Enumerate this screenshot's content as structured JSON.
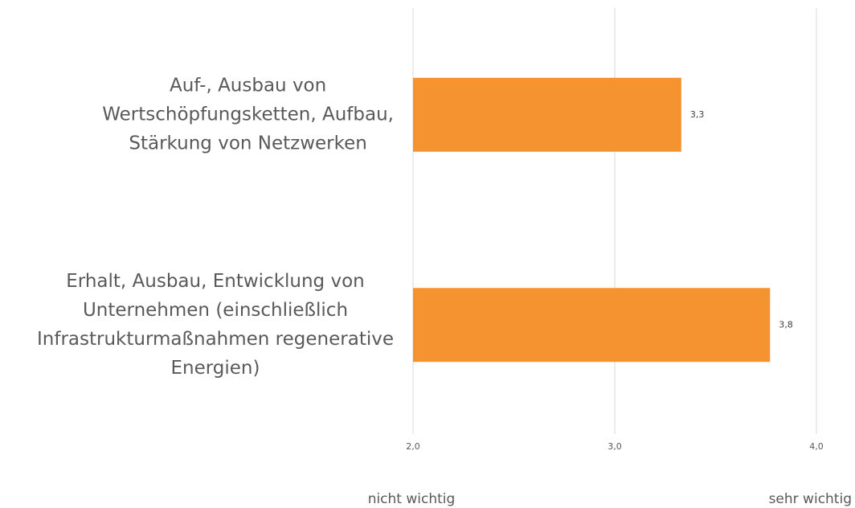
{
  "chart_data": {
    "type": "barh",
    "categories": [
      [
        "Auf-, Ausbau von",
        "Wertschöpfungsketten, Aufbau,",
        "Stärkung von Netzwerken"
      ],
      [
        "Erhalt, Ausbau, Entwicklung von",
        "Unternehmen (einschließlich",
        "Infrastrukturmaßnahmen regenerative",
        "Energien)"
      ]
    ],
    "values": [
      3.33,
      3.77
    ],
    "value_labels": [
      "3,3",
      "3,8"
    ],
    "color": "#f59331",
    "xlim": [
      2,
      4
    ],
    "xticks": [
      {
        "value": 2,
        "label": "2,0"
      },
      {
        "value": 3,
        "label": "3,0"
      },
      {
        "value": 4,
        "label": "4,0"
      }
    ],
    "grid": true,
    "annotations": [
      "nicht wichtig",
      "sehr wichtig"
    ]
  }
}
